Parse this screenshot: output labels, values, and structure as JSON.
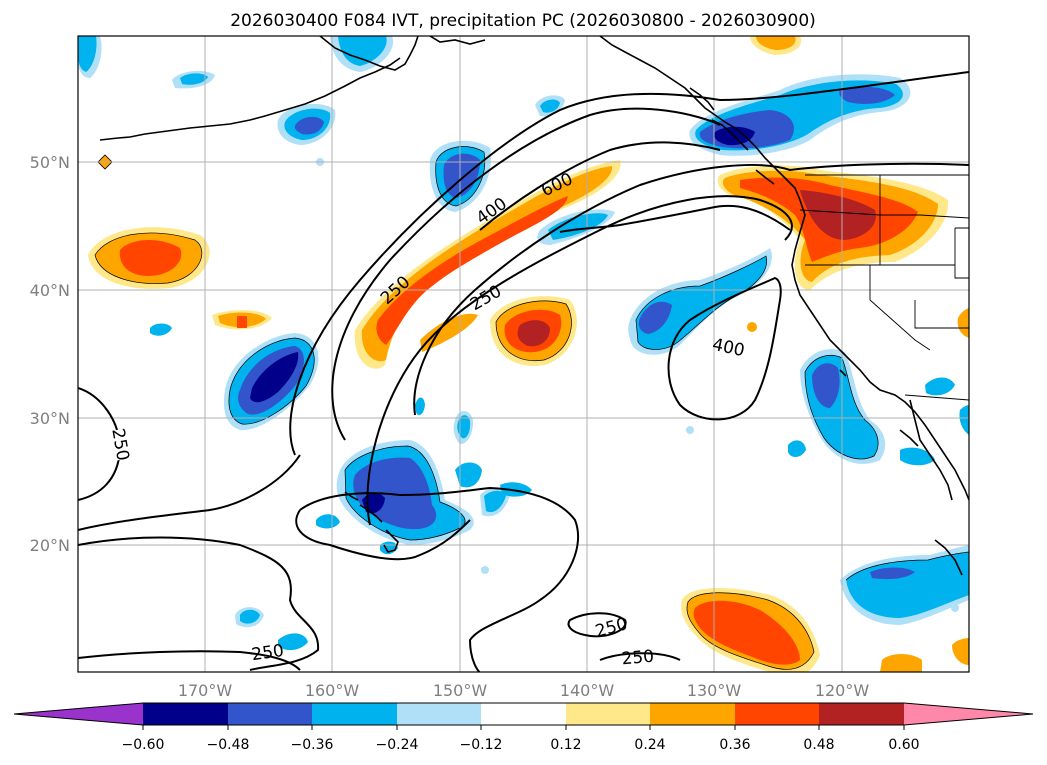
{
  "title": "2026030400 F084 IVT, precipitation PC (2026030800 - 2026030900)",
  "lat_labels": [
    "50°N",
    "40°N",
    "30°N",
    "20°N"
  ],
  "lon_labels": [
    "170°W",
    "160°W",
    "150°W",
    "140°W",
    "130°W",
    "120°W"
  ],
  "colorbar": {
    "labels": [
      "−0.60",
      "−0.48",
      "−0.36",
      "−0.24",
      "−0.12",
      "0.12",
      "0.24",
      "0.36",
      "0.48",
      "0.60"
    ],
    "colors": [
      "#9933cc",
      "#00008b",
      "#3355cc",
      "#00b2ee",
      "#b0e0f8",
      "#ffffff",
      "#ffe88a",
      "#ffa500",
      "#ff4500",
      "#b22222",
      "#ff88aa"
    ]
  },
  "contour_labels": [
    "250",
    "400",
    "600",
    "250",
    "400",
    "250",
    "250",
    "250",
    "250"
  ]
}
